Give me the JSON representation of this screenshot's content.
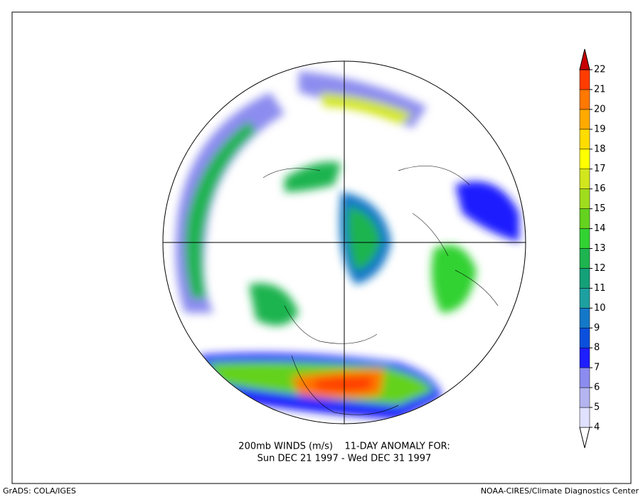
{
  "title_lines": [
    "200mb WINDS (m/s)    11-DAY ANOMALY FOR:",
    "Sun DEC 21 1997 - Wed DEC 31 1997"
  ],
  "footer_left": "GrADS: COLA/IGES",
  "footer_right": "NOAA-CIRES/Climate Diagnostics Center",
  "colorbar": {
    "ticks": [
      4,
      5,
      6,
      7,
      8,
      9,
      10,
      11,
      12,
      13,
      14,
      15,
      16,
      17,
      18,
      19,
      20,
      21,
      22
    ],
    "colors": [
      "#ffffff",
      "#e0e0ff",
      "#b4b4f0",
      "#8c8cf0",
      "#1e1eff",
      "#0a50dc",
      "#1478c8",
      "#1ea0a0",
      "#14a078",
      "#1eb450",
      "#32d232",
      "#64d21e",
      "#a0dc1e",
      "#d2e61e",
      "#ffff00",
      "#ffdc00",
      "#ffaa00",
      "#ff7800",
      "#ff3c00",
      "#c80000"
    ]
  }
}
